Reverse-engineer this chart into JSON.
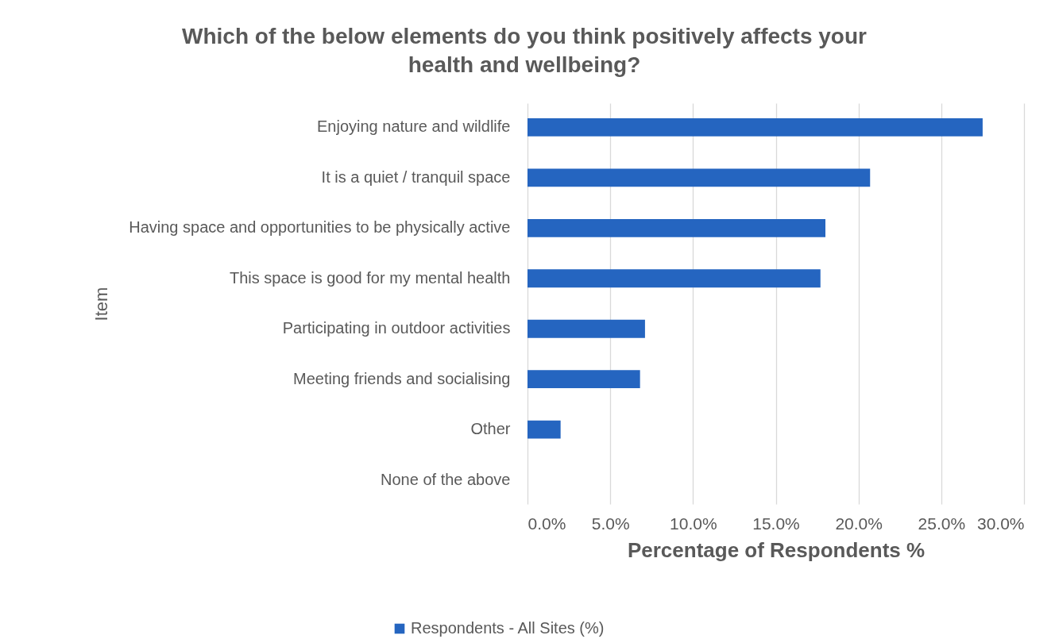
{
  "chart_data": {
    "type": "bar",
    "orientation": "horizontal",
    "title": "Which of the below elements do you think positively affects your\nhealth and wellbeing?",
    "xlabel": "Percentage of Respondents  %",
    "ylabel": "Item",
    "categories": [
      "Enjoying nature and wildlife",
      "It is a quiet / tranquil space",
      "Having space and opportunities to be physically active",
      "This space is good for my mental health",
      "Participating in outdoor activities",
      "Meeting friends and socialising",
      "Other",
      "None of the above"
    ],
    "series": [
      {
        "name": "Respondents - All Sites (%)",
        "color": "#2565c0",
        "values": [
          27.5,
          20.7,
          18.0,
          17.7,
          7.1,
          6.8,
          2.0,
          0
        ]
      }
    ],
    "xlim": [
      0,
      30
    ],
    "xticks": [
      {
        "value": 0,
        "label": "0.0%"
      },
      {
        "value": 5,
        "label": "5.0%"
      },
      {
        "value": 10,
        "label": "10.0%"
      },
      {
        "value": 15,
        "label": "15.0%"
      },
      {
        "value": 20,
        "label": "20.0%"
      },
      {
        "value": 25,
        "label": "25.0%"
      },
      {
        "value": 30,
        "label": "30.0%"
      }
    ],
    "grid": "x",
    "legend": "bottom"
  }
}
